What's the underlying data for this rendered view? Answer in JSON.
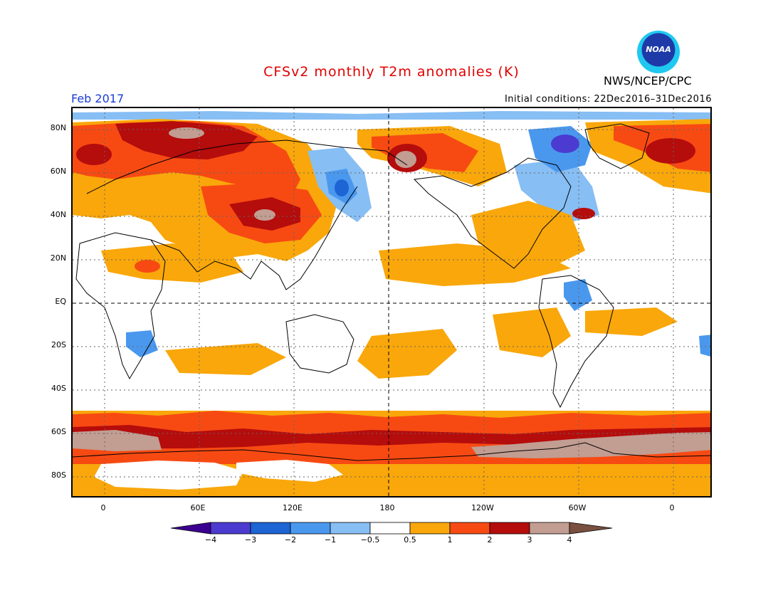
{
  "header": {
    "title": "CFSv2 monthly T2m anomalies (K)",
    "period": "Feb 2017",
    "initial_conditions": "Initial conditions: 22Dec2016–31Dec2016",
    "org": "NWS/NCEP/CPC",
    "logo_text": "NOAA"
  },
  "axes": {
    "lat_labels": [
      "80N",
      "60N",
      "40N",
      "20N",
      "EQ",
      "20S",
      "40S",
      "60S",
      "80S"
    ],
    "lon_labels": [
      "0",
      "60E",
      "120E",
      "180",
      "120W",
      "60W",
      "0"
    ]
  },
  "legend": {
    "labels": [
      "−4",
      "−3",
      "−2",
      "−1",
      "−0.5",
      "0.5",
      "1",
      "2",
      "3",
      "4"
    ],
    "colors": {
      "lt_-4": "#3a0090",
      "-4_-3": "#4b3bd0",
      "-3_-2": "#1d64d4",
      "-2_-1": "#4a98ee",
      "-1_-0.5": "#87bef4",
      "-0.5_0.5": "#ffffff",
      "0.5_1": "#f9a70a",
      "1_2": "#f74a13",
      "2_3": "#b50c0c",
      "3_4": "#c29d92",
      "gt_4": "#7a5040"
    }
  }
}
